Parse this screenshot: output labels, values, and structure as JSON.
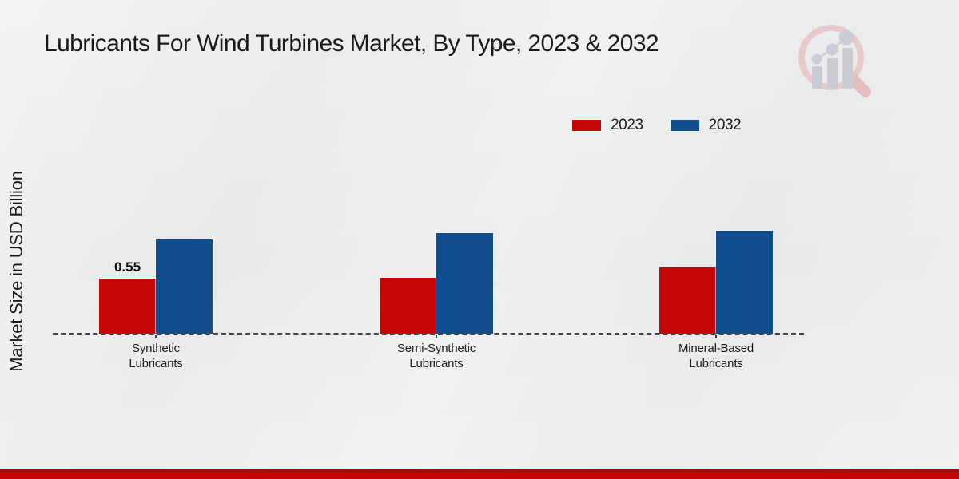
{
  "header": {
    "title": "Lubricants For Wind Turbines Market, By Type, 2023 & 2032"
  },
  "chart_data": {
    "type": "bar",
    "title": "Lubricants For Wind Turbines Market, By Type, 2023 & 2032",
    "xlabel": "",
    "ylabel": "Market Size in USD Billion",
    "categories": [
      "Synthetic Lubricants",
      "Semi-Synthetic Lubricants",
      "Mineral-Based Lubricants"
    ],
    "category_lines": [
      [
        "Synthetic",
        "Lubricants"
      ],
      [
        "Semi-Synthetic",
        "Lubricants"
      ],
      [
        "Mineral-Based",
        "Lubricants"
      ]
    ],
    "series": [
      {
        "name": "2023",
        "color": "#c50605",
        "values": [
          0.55,
          0.56,
          0.66
        ],
        "labels": [
          "0.55",
          "",
          ""
        ]
      },
      {
        "name": "2032",
        "color": "#104d8e",
        "values": [
          0.94,
          1.0,
          1.03
        ],
        "labels": [
          "",
          "",
          ""
        ]
      }
    ],
    "ylim": [
      0,
      1.2
    ],
    "grid": false,
    "legend_position": "top-right",
    "baseline_style": "dashed",
    "y_ticks_visible": false
  },
  "branding": {
    "logo_icon": "magnifier-bar-chart-watermark",
    "footer_bar_color": "#c20505"
  }
}
